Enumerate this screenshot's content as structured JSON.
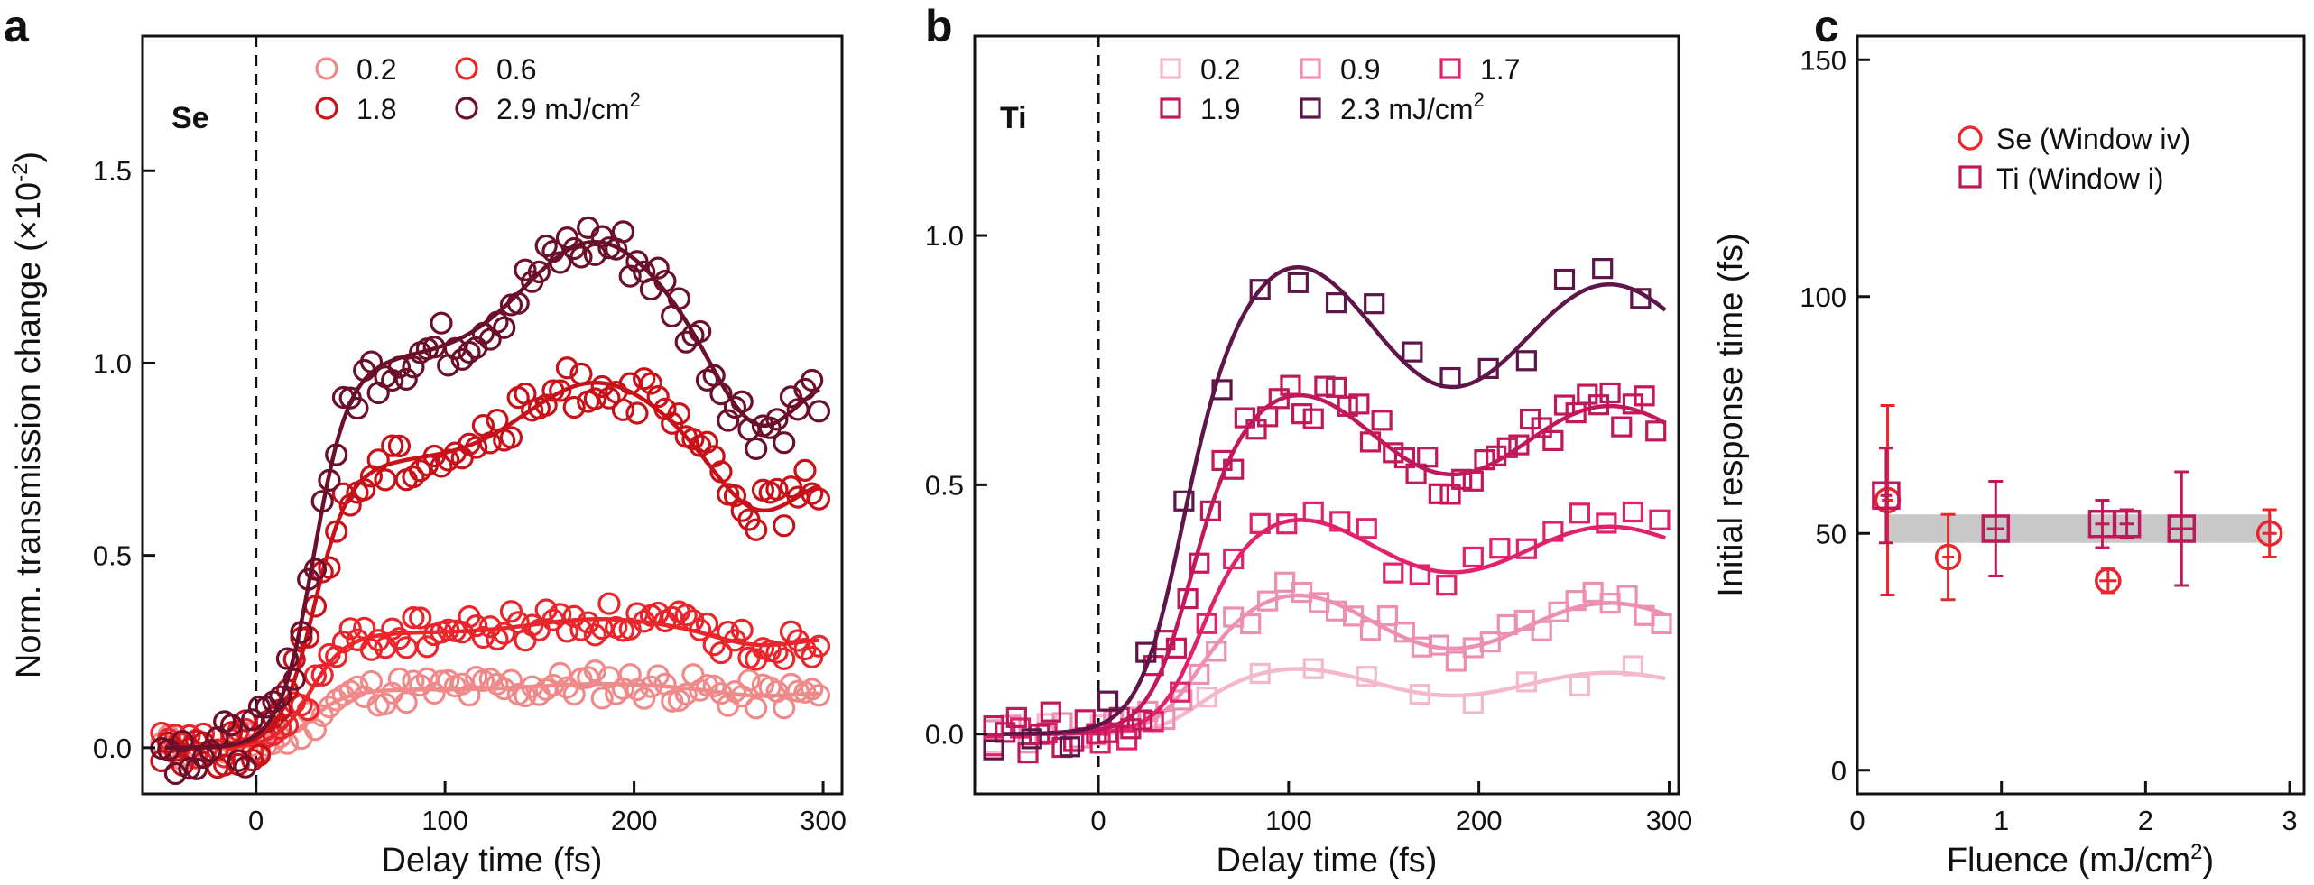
{
  "chart_data": [
    {
      "panel": "a",
      "type": "scatter",
      "tag": "Se",
      "xlabel": "Delay time (fs)",
      "ylabel_main": "Norm. transmission change (×10",
      "ylabel_exp": "-2",
      "ylabel_end": ")",
      "xlim": [
        -60,
        310
      ],
      "ylim": [
        -0.12,
        1.85
      ],
      "xticks": [
        0,
        100,
        200,
        300
      ],
      "yticks": [
        0.0,
        0.5,
        1.0,
        1.5
      ],
      "ytick_labels": [
        "0.0",
        "0.5",
        "1.0",
        "1.5"
      ],
      "zero_line_x": 0,
      "legend_unit": " mJ/cm",
      "legend_unit_exp": "2",
      "series": [
        {
          "name": "0.2",
          "color": "#f08a8a",
          "amp": 0.16,
          "rise": 28,
          "osc": 0.03,
          "offset": 0.02
        },
        {
          "name": "0.6",
          "color": "#e8262b",
          "amp": 0.32,
          "rise": 28,
          "osc": 0.05,
          "offset": 0.0
        },
        {
          "name": "1.8",
          "color": "#c8121a",
          "amp": 0.8,
          "rise": 30,
          "osc": 0.12,
          "offset": 0.0
        },
        {
          "name": "2.9",
          "color": "#6b0f2a",
          "amp": 1.1,
          "rise": 30,
          "osc": 0.13,
          "offset": 0.0
        }
      ]
    },
    {
      "panel": "b",
      "type": "scatter",
      "tag": "Ti",
      "xlabel": "Delay time (fs)",
      "xlim": [
        -65,
        305
      ],
      "ylim": [
        -0.12,
        1.4
      ],
      "xticks": [
        0,
        100,
        200,
        300
      ],
      "yticks": [
        0.0,
        0.5,
        1.0
      ],
      "ytick_labels": [
        "0.0",
        "0.5",
        "1.0"
      ],
      "zero_line_x": 0,
      "legend_unit": " mJ/cm",
      "legend_unit_exp": "2",
      "series": [
        {
          "name": "0.2",
          "color": "#f4b8cc",
          "amp": 0.12,
          "rise": 45,
          "osc": 0.02
        },
        {
          "name": "0.9",
          "color": "#ec8fb3",
          "amp": 0.26,
          "rise": 45,
          "osc": 0.04
        },
        {
          "name": "1.7",
          "color": "#e0226b",
          "amp": 0.44,
          "rise": 50,
          "osc": 0.04
        },
        {
          "name": "1.9",
          "color": "#c0185a",
          "amp": 0.7,
          "rise": 45,
          "osc": 0.06
        },
        {
          "name": "2.3",
          "color": "#5e1548",
          "amp": 0.95,
          "rise": 40,
          "osc": 0.09
        }
      ]
    },
    {
      "panel": "c",
      "type": "scatter",
      "xlabel_main": "Fluence (mJ/cm",
      "xlabel_exp": "2",
      "xlabel_end": ")",
      "ylabel": "Initial response time (fs)",
      "xlim": [
        0,
        3.1
      ],
      "ylim": [
        -5,
        155
      ],
      "xticks": [
        0,
        1,
        2,
        3
      ],
      "yticks": [
        0,
        50,
        100,
        150
      ],
      "band": {
        "low": 48,
        "high": 54,
        "color": "#c8c8c8"
      },
      "series": [
        {
          "name": "Se (Window iv)",
          "marker": "circle",
          "color": "#e8262b",
          "points": [
            {
              "x": 0.21,
              "y": 57,
              "yerr": 20,
              "xerr": 0.04
            },
            {
              "x": 0.63,
              "y": 45,
              "yerr": 9,
              "xerr": 0.04
            },
            {
              "x": 1.74,
              "y": 40,
              "yerr": 2.5,
              "xerr": 0.06
            },
            {
              "x": 2.86,
              "y": 50,
              "yerr": 5,
              "xerr": 0.05
            }
          ]
        },
        {
          "name": "Ti (Window i)",
          "marker": "square",
          "color": "#c0185a",
          "points": [
            {
              "x": 0.2,
              "y": 58,
              "yerr": 10,
              "xerr": 0.04
            },
            {
              "x": 0.96,
              "y": 51,
              "yerr": 10,
              "xerr": 0.06
            },
            {
              "x": 1.7,
              "y": 52,
              "yerr": 5,
              "xerr": 0.05
            },
            {
              "x": 1.87,
              "y": 52,
              "yerr": 3,
              "xerr": 0.05
            },
            {
              "x": 2.25,
              "y": 51,
              "yerr": 12,
              "xerr": 0.08
            }
          ]
        }
      ]
    }
  ]
}
